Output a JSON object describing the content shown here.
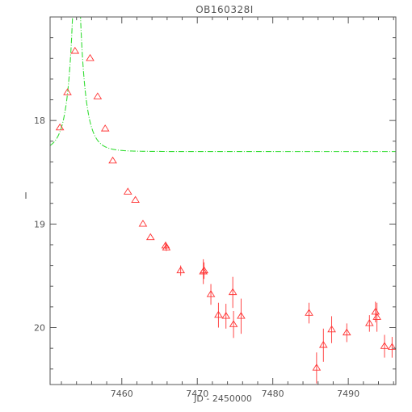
{
  "chart_data": {
    "type": "scatter",
    "title": "OB160328I",
    "xlabel": "JD - 2450000",
    "ylabel": "I",
    "xlim": [
      7450.5,
      7496.3
    ],
    "ylim": [
      20.55,
      17.0
    ],
    "y_inverted": true,
    "x_ticks": [
      7460,
      7470,
      7480,
      7490
    ],
    "x_tick_labels": [
      "7460",
      "7470",
      "7480",
      "7490"
    ],
    "y_ticks": [
      18,
      19,
      20
    ],
    "y_tick_labels": [
      "18",
      "19",
      "20"
    ],
    "grid": false,
    "colors": {
      "data": "#ff3333",
      "model": "#33dd33",
      "axes": "#555555"
    },
    "series": [
      {
        "marker": "triangle-open",
        "color": "#ff3333",
        "points": [
          {
            "x": 7451.8,
            "y": 18.07,
            "err": 0.0
          },
          {
            "x": 7452.8,
            "y": 17.73,
            "err": 0.0
          },
          {
            "x": 7453.8,
            "y": 17.33,
            "err": 0.0
          },
          {
            "x": 7455.8,
            "y": 17.4,
            "err": 0.0
          },
          {
            "x": 7456.8,
            "y": 17.77,
            "err": 0.0
          },
          {
            "x": 7457.8,
            "y": 18.08,
            "err": 0.0
          },
          {
            "x": 7458.8,
            "y": 18.39,
            "err": 0.0
          },
          {
            "x": 7460.8,
            "y": 18.69,
            "err": 0.0
          },
          {
            "x": 7461.8,
            "y": 18.77,
            "err": 0.0
          },
          {
            "x": 7462.8,
            "y": 19.0,
            "err": 0.0
          },
          {
            "x": 7463.8,
            "y": 19.13,
            "err": 0.0
          },
          {
            "x": 7465.8,
            "y": 19.21,
            "err": 0.03
          },
          {
            "x": 7465.9,
            "y": 19.23,
            "err": 0.03
          },
          {
            "x": 7467.8,
            "y": 19.45,
            "err": 0.05
          },
          {
            "x": 7470.8,
            "y": 19.46,
            "err": 0.12
          },
          {
            "x": 7470.9,
            "y": 19.45,
            "err": 0.08
          },
          {
            "x": 7471.8,
            "y": 19.68,
            "err": 0.1
          },
          {
            "x": 7472.8,
            "y": 19.88,
            "err": 0.12
          },
          {
            "x": 7473.8,
            "y": 19.89,
            "err": 0.12
          },
          {
            "x": 7474.7,
            "y": 19.66,
            "err": 0.15
          },
          {
            "x": 7474.8,
            "y": 19.97,
            "err": 0.13
          },
          {
            "x": 7475.8,
            "y": 19.89,
            "err": 0.17
          },
          {
            "x": 7484.8,
            "y": 19.86,
            "err": 0.1
          },
          {
            "x": 7485.8,
            "y": 20.39,
            "err": 0.15
          },
          {
            "x": 7486.7,
            "y": 20.17,
            "err": 0.16
          },
          {
            "x": 7487.8,
            "y": 20.02,
            "err": 0.13
          },
          {
            "x": 7489.8,
            "y": 20.05,
            "err": 0.09
          },
          {
            "x": 7492.8,
            "y": 19.96,
            "err": 0.08
          },
          {
            "x": 7493.6,
            "y": 19.85,
            "err": 0.1
          },
          {
            "x": 7493.8,
            "y": 19.9,
            "err": 0.14
          },
          {
            "x": 7494.8,
            "y": 20.18,
            "err": 0.11
          },
          {
            "x": 7495.8,
            "y": 20.19,
            "err": 0.1
          }
        ]
      },
      {
        "type": "line",
        "style": "dash-dot",
        "color": "#33dd33",
        "model": {
          "baseline": 18.3,
          "t0": 7454.0,
          "u0": 0.025,
          "tE": 1.7
        }
      }
    ]
  }
}
